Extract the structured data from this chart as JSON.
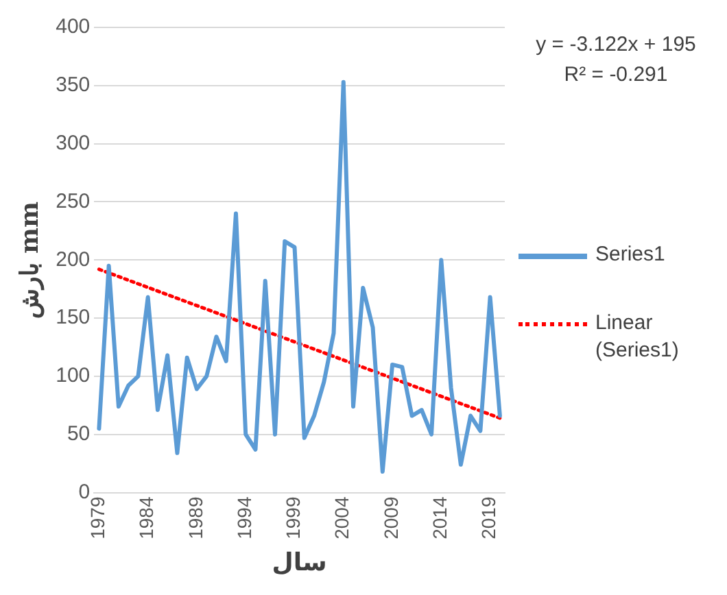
{
  "chart_data": {
    "type": "line",
    "xlabel": "سال",
    "ylabel": "بارش mm",
    "x": [
      1979,
      1980,
      1981,
      1982,
      1983,
      1984,
      1985,
      1986,
      1987,
      1988,
      1989,
      1990,
      1991,
      1992,
      1993,
      1994,
      1995,
      1996,
      1997,
      1998,
      1999,
      2000,
      2001,
      2002,
      2003,
      2004,
      2005,
      2006,
      2007,
      2008,
      2009,
      2010,
      2011,
      2012,
      2013,
      2014,
      2015,
      2016,
      2017,
      2018,
      2019,
      2020
    ],
    "xlim": [
      1978.5,
      2020.5
    ],
    "xticks": [
      1979,
      1984,
      1989,
      1994,
      1999,
      2004,
      2009,
      2014,
      2019
    ],
    "ylim": [
      0,
      400
    ],
    "yticks": [
      0,
      50,
      100,
      150,
      200,
      250,
      300,
      350,
      400
    ],
    "series": [
      {
        "name": "Series1",
        "color": "#5b9bd5",
        "values": [
          55,
          195,
          74,
          92,
          100,
          168,
          71,
          118,
          34,
          116,
          89,
          100,
          134,
          113,
          240,
          50,
          37,
          182,
          50,
          216,
          211,
          47,
          66,
          95,
          137,
          353,
          74,
          176,
          142,
          18,
          110,
          108,
          66,
          71,
          50,
          200,
          90,
          24,
          66,
          53,
          168,
          66
        ]
      },
      {
        "name": "Linear (Series1)",
        "type": "line",
        "color": "#ff0000",
        "line_style": "dotted",
        "x": [
          1979,
          2020
        ],
        "values": [
          192,
          64
        ]
      }
    ],
    "annotations": [
      "y = -3.122x + 195",
      "R² = -0.291"
    ],
    "grid": "y",
    "legend": "right",
    "marker": "none",
    "line_style": "solid"
  }
}
